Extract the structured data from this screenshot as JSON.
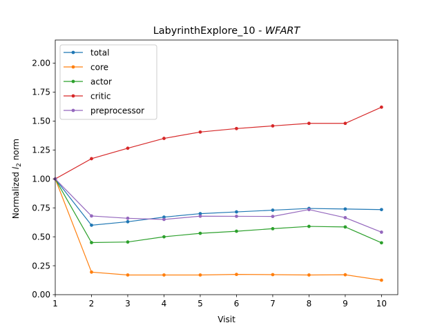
{
  "chart_data": {
    "type": "line",
    "title_main": "LabyrinthExplore_10 - ",
    "title_italic": "WFART",
    "xlabel": "Visit",
    "ylabel_pre": "Normalized ",
    "ylabel_l": "l",
    "ylabel_sub": "2",
    "ylabel_post": " norm",
    "xlim": [
      1,
      10.45
    ],
    "ylim": [
      0,
      2.2
    ],
    "xticks": [
      1,
      2,
      3,
      4,
      5,
      6,
      7,
      8,
      9,
      10
    ],
    "xtick_labels": [
      "1",
      "2",
      "3",
      "4",
      "5",
      "6",
      "7",
      "8",
      "9",
      "10"
    ],
    "yticks": [
      0,
      0.25,
      0.5,
      0.75,
      1.0,
      1.25,
      1.5,
      1.75,
      2.0
    ],
    "ytick_labels": [
      "0.00",
      "0.25",
      "0.50",
      "0.75",
      "1.00",
      "1.25",
      "1.50",
      "1.75",
      "2.00"
    ],
    "grid": false,
    "legend_position": "top-left",
    "x": [
      1,
      2,
      3,
      4,
      5,
      6,
      7,
      8,
      9,
      10
    ],
    "series": [
      {
        "name": "total",
        "color": "#1f77b4",
        "values": [
          1.0,
          0.6,
          0.63,
          0.67,
          0.7,
          0.715,
          0.73,
          0.745,
          0.74,
          0.735
        ]
      },
      {
        "name": "core",
        "color": "#ff7f0e",
        "values": [
          1.0,
          0.195,
          0.17,
          0.17,
          0.17,
          0.175,
          0.173,
          0.17,
          0.172,
          0.125
        ]
      },
      {
        "name": "actor",
        "color": "#2ca02c",
        "values": [
          1.0,
          0.45,
          0.455,
          0.5,
          0.53,
          0.548,
          0.57,
          0.59,
          0.585,
          0.448
        ]
      },
      {
        "name": "critic",
        "color": "#d62728",
        "values": [
          1.0,
          1.175,
          1.265,
          1.35,
          1.405,
          1.435,
          1.458,
          1.48,
          1.48,
          1.62
        ]
      },
      {
        "name": "preprocessor",
        "color": "#9467bd",
        "values": [
          1.0,
          0.68,
          0.66,
          0.65,
          0.678,
          0.677,
          0.676,
          0.735,
          0.665,
          0.54
        ]
      }
    ]
  }
}
